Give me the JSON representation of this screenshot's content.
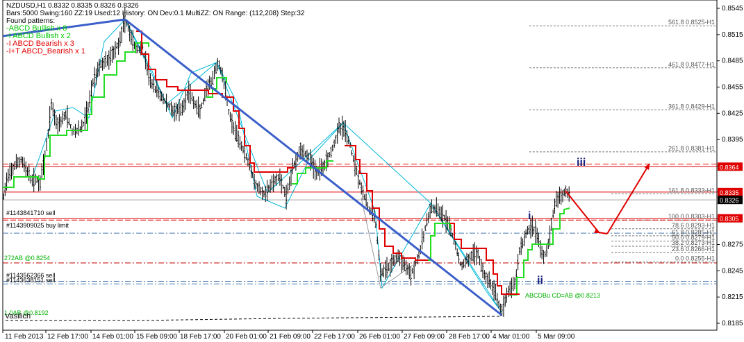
{
  "header": {
    "symbol": "NZDUSD,H1  0.8332 0.8335 0.8326 0.8326",
    "settings": "Bars:5000  Swing:160  ZZ:19  Used:12  History: ON Dev:0.1  MultiZZ: ON  Range: (112,208)  Step:32",
    "found_title": "Found patterns:",
    "patterns": [
      {
        "text": "-ABCD Bullish x 8",
        "color": "#00c800"
      },
      {
        "text": "-I ABCD Bullish x 2",
        "color": "#00c800"
      },
      {
        "text": "-I ABCD Bearish x 3",
        "color": "#e00000"
      },
      {
        "text": "-I+T ABCD_Bearish x 1",
        "color": "#e00000"
      }
    ]
  },
  "chart_data": {
    "type": "candlestick",
    "ylim": [
      0.818,
      0.855
    ],
    "y_ticks": [
      "0.8545",
      "0.8515",
      "0.8485",
      "0.8455",
      "0.8425",
      "0.8395",
      "0.8365",
      "0.8335",
      "0.8305",
      "0.8275",
      "0.8245",
      "0.8215",
      "0.8185"
    ],
    "x_labels": [
      "11 Feb 2013",
      "12 Feb 17:00",
      "14 Feb 01:00",
      "15 Feb 09:00",
      "18 Feb 17:00",
      "20 Feb 01:00",
      "21 Feb 09:00",
      "22 Feb 17:00",
      "26 Feb 01:00",
      "27 Feb 09:00",
      "28 Feb 17:00",
      "4 Mar 01:00",
      "5 Mar 09:00"
    ],
    "fib_levels": [
      {
        "label": "561.8 0.8525-H1",
        "value": 0.8525
      },
      {
        "label": "461.8 0.8477-H1",
        "value": 0.8477
      },
      {
        "label": "361.8 0.8429-H1",
        "value": 0.8429
      },
      {
        "label": "261.8 0.8381-H1",
        "value": 0.8381
      },
      {
        "label": "161.8 0.8333-H1",
        "value": 0.8333
      },
      {
        "label": "100.0 0.8303-H1",
        "value": 0.8303
      },
      {
        "label": "78.6 0.8293-H1",
        "value": 0.8293
      },
      {
        "label": "61.8 0.8285-H1",
        "value": 0.8285
      },
      {
        "label": "50.0 0.8279-H1",
        "value": 0.8279
      },
      {
        "label": "38.2 0.8273-H1",
        "value": 0.8273
      },
      {
        "label": "23.6 0.8266-H1",
        "value": 0.8266
      },
      {
        "label": "0.0 0.8255-H1",
        "value": 0.8255
      }
    ],
    "price_boxes": [
      {
        "text": "0.8364",
        "value": 0.8364,
        "bg": "#e00000"
      },
      {
        "text": "0.8335",
        "value": 0.8335,
        "bg": "#e00000"
      },
      {
        "text": "0.8326",
        "value": 0.8326,
        "bg": "#000000"
      },
      {
        "text": "0.8305",
        "value": 0.8305,
        "bg": "#e00000"
      }
    ],
    "orders": [
      {
        "text": "#1143841710 sell",
        "value": 0.8305
      },
      {
        "text": "#1143909025 buy limit",
        "value": 0.8288
      },
      {
        "text": "#1143562366 sell",
        "value": 0.8233
      },
      {
        "text": "#1143638151 sell",
        "value": 0.823
      }
    ],
    "green_labels": [
      {
        "text": "272AB  @0.8254",
        "value": 0.8254
      },
      {
        "text": "ABCDBu CD=AB  @0.8213",
        "value": 0.8213
      },
      {
        "text": "1.0AB  @0.8192",
        "value": 0.8192
      }
    ],
    "wave_labels": [
      "i",
      "ii",
      "iii"
    ],
    "footer_text": "Vasilich"
  }
}
